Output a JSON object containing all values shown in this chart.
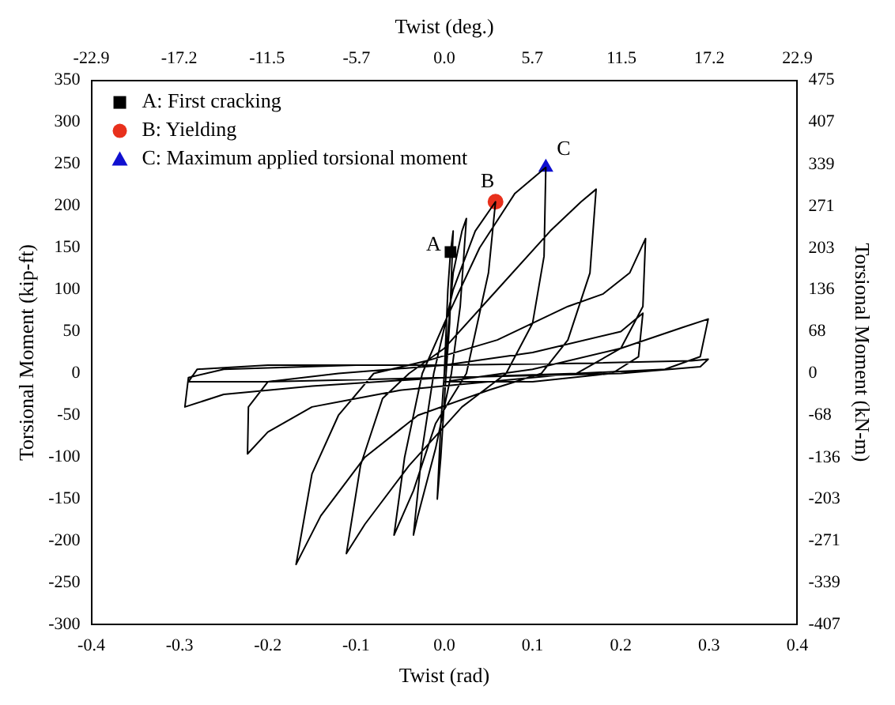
{
  "chart_data": {
    "type": "line",
    "xlabel": "Twist (rad)",
    "ylabel": "Torsional Moment (kip-ft)",
    "x2label": "Twist (deg.)",
    "y2label": "Torsional Moment (kN-m)",
    "xlim": [
      -0.4,
      0.4
    ],
    "xticks": [
      {
        "value": -0.4,
        "label": "-0.4"
      },
      {
        "value": -0.3,
        "label": "-0.3"
      },
      {
        "value": -0.2,
        "label": "-0.2"
      },
      {
        "value": -0.1,
        "label": "-0.1"
      },
      {
        "value": 0,
        "label": "0.0"
      },
      {
        "value": 0.1,
        "label": "0.1"
      },
      {
        "value": 0.2,
        "label": "0.2"
      },
      {
        "value": 0.3,
        "label": "0.3"
      },
      {
        "value": 0.4,
        "label": "0.4"
      }
    ],
    "x2lim": [
      -22.9,
      22.9
    ],
    "x2ticks": [
      -22.9,
      -17.2,
      -11.5,
      -5.7,
      {
        "value": 0,
        "label": "0.0"
      },
      5.7,
      11.5,
      17.2,
      22.9
    ],
    "ylim": [
      -300,
      350
    ],
    "yticks": [
      -300,
      -250,
      -200,
      -150,
      -100,
      -50,
      0,
      50,
      100,
      150,
      200,
      250,
      300,
      350
    ],
    "y2lim": [
      -407,
      475
    ],
    "y2ticks": [
      -407,
      -339,
      -271,
      -203,
      -136,
      -68,
      0,
      68,
      136,
      203,
      271,
      339,
      407,
      475
    ],
    "grid": false,
    "legend": "top left",
    "series": [
      {
        "color": "#000000",
        "marker": "none",
        "line_style": "solid",
        "x": [
          0,
          0.004,
          0.007,
          0.01,
          0.006,
          0.002,
          -0.004,
          -0.008,
          -0.004,
          0,
          0.01,
          0.02,
          0.025,
          0.018,
          0.008,
          -0.01,
          -0.03,
          -0.035,
          -0.025,
          -0.012,
          0.01,
          0.035,
          0.058,
          0.05,
          0.025,
          -0.01,
          -0.035,
          -0.057,
          -0.045,
          -0.025,
          0,
          0.04,
          0.08,
          0.115,
          0.113,
          0.1,
          0.07,
          0.02,
          -0.04,
          -0.09,
          -0.111,
          -0.095,
          -0.07,
          -0.04,
          0,
          0.06,
          0.12,
          0.155,
          0.172,
          0.165,
          0.14,
          0.11,
          0.05,
          -0.03,
          -0.09,
          -0.14,
          -0.168,
          -0.15,
          -0.12,
          -0.08,
          -0.02,
          0.06,
          0.14,
          0.18,
          0.21,
          0.228,
          0.225,
          0.2,
          0.15,
          0.05,
          -0.05,
          -0.15,
          -0.2,
          -0.223,
          -0.222,
          -0.2,
          -0.12,
          0,
          0.1,
          0.2,
          0.225,
          0.22,
          0.19,
          0.1,
          0,
          0.1,
          0.2,
          0.27,
          0.299,
          0.29,
          0.25,
          0.15,
          0,
          -0.15,
          -0.25,
          -0.294,
          -0.29,
          -0.25,
          -0.1,
          0,
          0.15,
          0.28,
          0.299,
          0.29,
          0.2,
          0,
          -0.2,
          -0.29,
          -0.28,
          -0.2,
          0
        ],
        "values": [
          0,
          100,
          145,
          170,
          60,
          0,
          -100,
          -150,
          -60,
          0,
          120,
          170,
          185,
          80,
          0,
          -90,
          -170,
          -193,
          -90,
          0,
          100,
          170,
          205,
          120,
          0,
          -60,
          -140,
          -193,
          -100,
          0,
          60,
          150,
          215,
          246,
          140,
          60,
          0,
          -40,
          -110,
          -180,
          -215,
          -110,
          -30,
          0,
          30,
          100,
          170,
          205,
          220,
          120,
          40,
          0,
          -20,
          -50,
          -100,
          -170,
          -228,
          -120,
          -50,
          0,
          15,
          40,
          80,
          95,
          120,
          161,
          80,
          30,
          0,
          -10,
          -20,
          -40,
          -70,
          -96,
          -40,
          -10,
          0,
          10,
          25,
          50,
          72,
          20,
          0,
          -10,
          -10,
          5,
          30,
          55,
          65,
          20,
          5,
          0,
          -5,
          -15,
          -25,
          -40,
          -5,
          5,
          10,
          10,
          12,
          15,
          17,
          8,
          0,
          -5,
          -10,
          -10,
          5,
          10,
          10
        ]
      },
      {
        "type": "scatter",
        "name": "A: First cracking",
        "color": "#000000",
        "marker": "square",
        "x": [
          0.007
        ],
        "values": [
          145
        ]
      },
      {
        "type": "scatter",
        "name": "B: Yielding",
        "color": "#e8301c",
        "marker": "circle",
        "x": [
          0.058
        ],
        "values": [
          205
        ]
      },
      {
        "type": "scatter",
        "name": "C: Maximum applied torsional moment",
        "color": "#1010d0",
        "marker": "triangle",
        "x": [
          0.115
        ],
        "values": [
          246
        ]
      }
    ],
    "annotations": [
      {
        "text": "A",
        "x": 0.007,
        "y": 145
      },
      {
        "text": "B",
        "x": 0.058,
        "y": 205
      },
      {
        "text": "C",
        "x": 0.115,
        "y": 246
      }
    ]
  }
}
